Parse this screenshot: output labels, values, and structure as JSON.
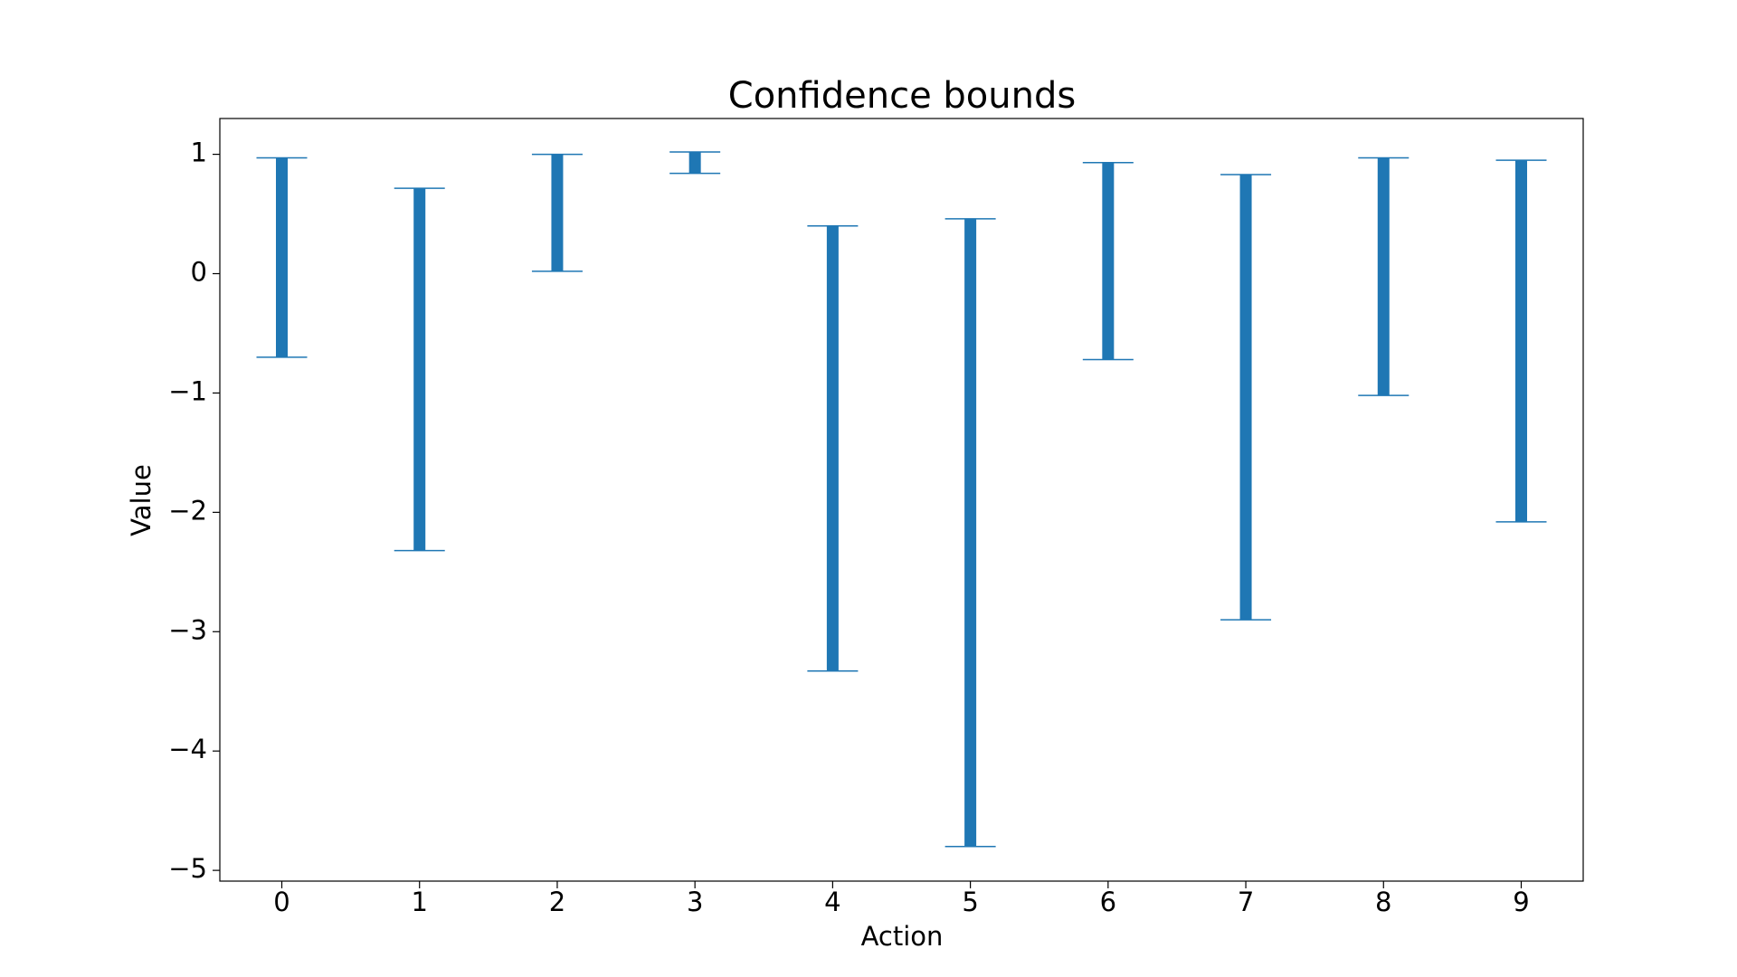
{
  "chart_data": {
    "type": "range-bar",
    "title": "Confidence bounds",
    "x_label": "Action",
    "y_label": "Value",
    "categories": [
      "0",
      "1",
      "2",
      "3",
      "4",
      "5",
      "6",
      "7",
      "8",
      "9"
    ],
    "low": [
      -0.7,
      -2.32,
      0.02,
      0.84,
      -3.33,
      -4.8,
      -0.72,
      -2.9,
      -1.02,
      -2.08
    ],
    "high": [
      0.97,
      0.715,
      1.0,
      1.02,
      0.4,
      0.46,
      0.93,
      0.83,
      0.97,
      0.95
    ],
    "color": "#1f77b4",
    "xlim": [
      -0.45,
      9.45
    ],
    "ylim": [
      -5.09,
      1.3
    ],
    "yticks": [
      {
        "value": -5,
        "label": "−5"
      },
      {
        "value": -4,
        "label": "−4"
      },
      {
        "value": -3,
        "label": "−3"
      },
      {
        "value": -2,
        "label": "−2"
      },
      {
        "value": -1,
        "label": "−1"
      },
      0,
      1
    ],
    "grid": false
  }
}
